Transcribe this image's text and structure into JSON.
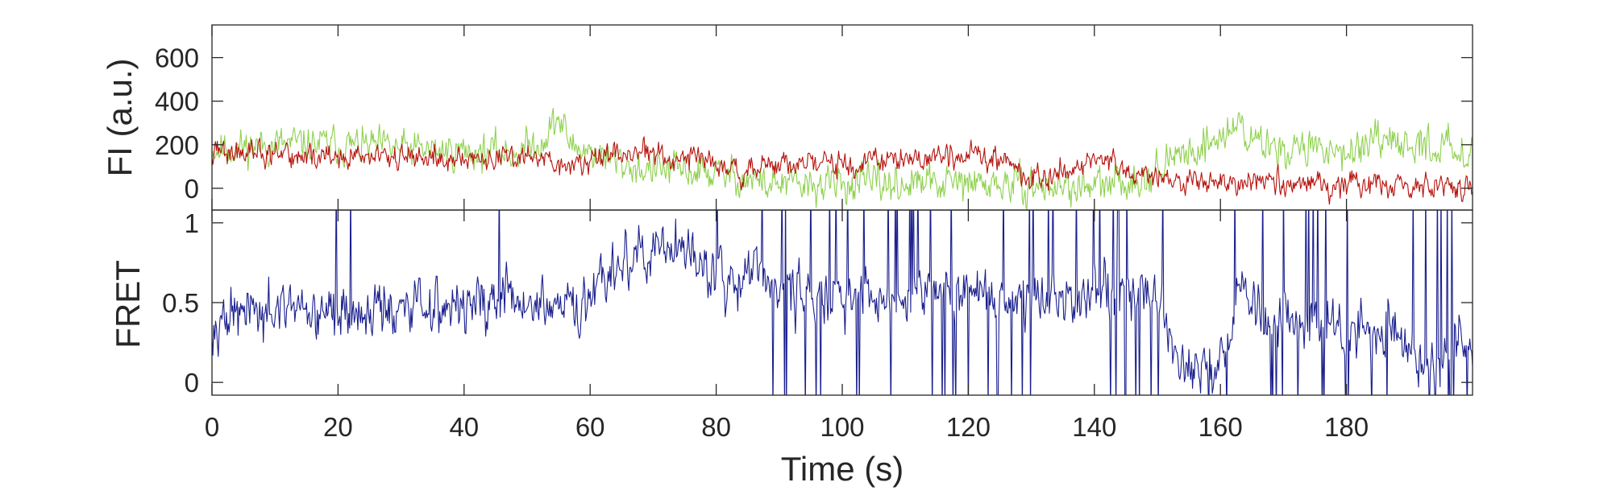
{
  "chart_data": [
    {
      "type": "line",
      "panel": "top",
      "ylabel": "FI (a.u.)",
      "xlabel": "",
      "xlim": [
        0,
        200
      ],
      "ylim": [
        -100,
        750
      ],
      "yticks": [
        0,
        200,
        400,
        600
      ],
      "yticklabels": [
        "0",
        "200",
        "400",
        "600"
      ],
      "grid": false,
      "legend": "none",
      "series": [
        {
          "color": "#8fd14f",
          "trend": [
            [
              0,
              180
            ],
            [
              10,
              200
            ],
            [
              20,
              200
            ],
            [
              30,
              180
            ],
            [
              40,
              170
            ],
            [
              48,
              165
            ],
            [
              52,
              210
            ],
            [
              55,
              320
            ],
            [
              57,
              200
            ],
            [
              60,
              170
            ],
            [
              64,
              120
            ],
            [
              68,
              90
            ],
            [
              75,
              80
            ],
            [
              80,
              70
            ],
            [
              84,
              50
            ],
            [
              88,
              20
            ],
            [
              95,
              10
            ],
            [
              100,
              20
            ],
            [
              110,
              20
            ],
            [
              120,
              20
            ],
            [
              130,
              10
            ],
            [
              140,
              0
            ],
            [
              145,
              30
            ],
            [
              150,
              80
            ],
            [
              153,
              140
            ],
            [
              157,
              200
            ],
            [
              160,
              230
            ],
            [
              163,
              300
            ],
            [
              165,
              220
            ],
            [
              170,
              180
            ],
            [
              180,
              180
            ],
            [
              190,
              200
            ],
            [
              200,
              180
            ]
          ],
          "noise": 85
        },
        {
          "color": "#b5130d",
          "trend": [
            [
              0,
              170
            ],
            [
              10,
              150
            ],
            [
              20,
              140
            ],
            [
              30,
              140
            ],
            [
              40,
              135
            ],
            [
              50,
              140
            ],
            [
              55,
              110
            ],
            [
              60,
              120
            ],
            [
              65,
              160
            ],
            [
              70,
              160
            ],
            [
              75,
              140
            ],
            [
              80,
              110
            ],
            [
              85,
              80
            ],
            [
              90,
              110
            ],
            [
              100,
              110
            ],
            [
              110,
              130
            ],
            [
              120,
              150
            ],
            [
              125,
              150
            ],
            [
              130,
              40
            ],
            [
              135,
              80
            ],
            [
              140,
              140
            ],
            [
              142,
              150
            ],
            [
              145,
              90
            ],
            [
              150,
              40
            ],
            [
              155,
              20
            ],
            [
              160,
              20
            ],
            [
              170,
              20
            ],
            [
              180,
              20
            ],
            [
              190,
              10
            ],
            [
              200,
              0
            ]
          ],
          "noise": 60
        }
      ]
    },
    {
      "type": "line",
      "panel": "bottom",
      "ylabel": "FRET",
      "xlabel": "Time (s)",
      "xlim": [
        0,
        200
      ],
      "ylim": [
        -0.08,
        1.08
      ],
      "xticks": [
        0,
        20,
        40,
        60,
        80,
        100,
        120,
        140,
        160,
        180
      ],
      "xticklabels": [
        "0",
        "20",
        "40",
        "60",
        "80",
        "100",
        "120",
        "140",
        "160",
        "180"
      ],
      "yticks": [
        0,
        0.5,
        1
      ],
      "yticklabels": [
        "0",
        "0.5",
        "1"
      ],
      "grid": false,
      "legend": "none",
      "series": [
        {
          "color": "#1a1f8c",
          "trend": [
            [
              0,
              0.42
            ],
            [
              10,
              0.42
            ],
            [
              20,
              0.42
            ],
            [
              30,
              0.45
            ],
            [
              40,
              0.5
            ],
            [
              50,
              0.5
            ],
            [
              55,
              0.45
            ],
            [
              60,
              0.45
            ],
            [
              62,
              0.7
            ],
            [
              65,
              0.75
            ],
            [
              70,
              0.85
            ],
            [
              75,
              0.8
            ],
            [
              80,
              0.7
            ],
            [
              83,
              0.6
            ],
            [
              86,
              0.75
            ],
            [
              90,
              0.6
            ],
            [
              100,
              0.5
            ],
            [
              110,
              0.55
            ],
            [
              120,
              0.6
            ],
            [
              130,
              0.5
            ],
            [
              140,
              0.55
            ],
            [
              150,
              0.55
            ],
            [
              153,
              0.1
            ],
            [
              160,
              0.1
            ],
            [
              163,
              0.6
            ],
            [
              167,
              0.4
            ],
            [
              170,
              0.35
            ],
            [
              180,
              0.35
            ],
            [
              188,
              0.3
            ],
            [
              192,
              0.1
            ],
            [
              200,
              0.3
            ]
          ],
          "noise": 0.18
        }
      ]
    }
  ]
}
